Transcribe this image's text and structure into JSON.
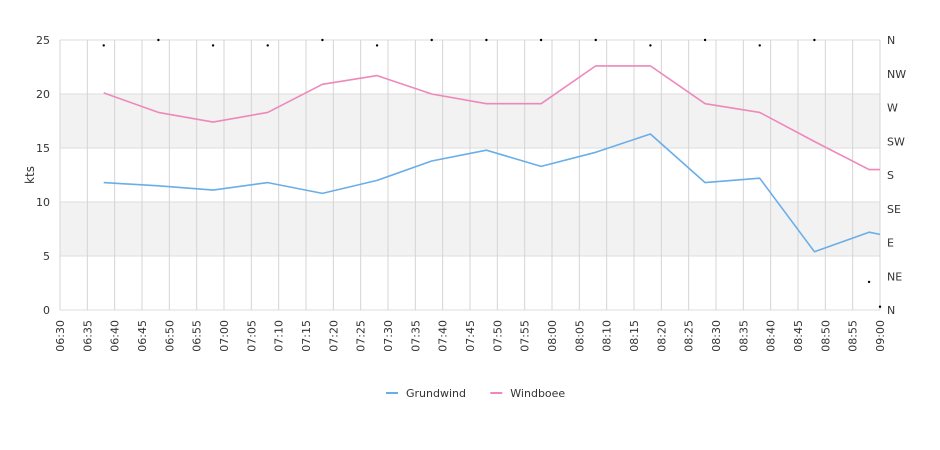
{
  "chart_data": {
    "type": "line",
    "x": [
      "06:30",
      "06:35",
      "06:40",
      "06:45",
      "06:50",
      "06:55",
      "07:00",
      "07:05",
      "07:10",
      "07:15",
      "07:20",
      "07:25",
      "07:30",
      "07:35",
      "07:40",
      "07:45",
      "07:50",
      "07:55",
      "08:00",
      "08:05",
      "08:10",
      "08:15",
      "08:20",
      "08:25",
      "08:30",
      "08:35",
      "08:40",
      "08:45",
      "08:50",
      "08:55",
      "09:00"
    ],
    "ylabel": "kts",
    "ylim": [
      0,
      25
    ],
    "yticks": [
      "0",
      "5",
      "10",
      "15",
      "20",
      "25"
    ],
    "y2ticks": [
      "N",
      "NE",
      "E",
      "SE",
      "S",
      "SW",
      "W",
      "NW",
      "N"
    ],
    "grid": true,
    "shaded_bands": [
      [
        5,
        10
      ],
      [
        15,
        20
      ]
    ],
    "legend_position": "bottom",
    "series": [
      {
        "name": "Grundwind",
        "color": "#6aaee8",
        "points": [
          [
            "06:38",
            11.8
          ],
          [
            "06:48",
            11.5
          ],
          [
            "06:58",
            11.1
          ],
          [
            "07:08",
            11.8
          ],
          [
            "07:18",
            10.8
          ],
          [
            "07:28",
            12.0
          ],
          [
            "07:38",
            13.8
          ],
          [
            "07:48",
            14.8
          ],
          [
            "07:58",
            13.3
          ],
          [
            "08:08",
            14.6
          ],
          [
            "08:18",
            16.3
          ],
          [
            "08:28",
            11.8
          ],
          [
            "08:38",
            12.2
          ],
          [
            "08:48",
            5.4
          ],
          [
            "08:58",
            7.2
          ],
          [
            "09:00",
            7.0
          ]
        ]
      },
      {
        "name": "Windboee",
        "color": "#ee88bb",
        "points": [
          [
            "06:38",
            20.1
          ],
          [
            "06:48",
            18.3
          ],
          [
            "06:58",
            17.4
          ],
          [
            "07:08",
            18.3
          ],
          [
            "07:18",
            20.9
          ],
          [
            "07:28",
            21.7
          ],
          [
            "07:38",
            20.0
          ],
          [
            "07:48",
            19.1
          ],
          [
            "07:58",
            19.1
          ],
          [
            "08:08",
            22.6
          ],
          [
            "08:18",
            22.6
          ],
          [
            "08:28",
            19.1
          ],
          [
            "08:38",
            18.3
          ],
          [
            "08:48",
            15.6
          ],
          [
            "08:58",
            13.0
          ],
          [
            "09:00",
            13.0
          ]
        ]
      }
    ],
    "direction_points": [
      [
        "06:38",
        24.5
      ],
      [
        "06:48",
        25.0
      ],
      [
        "06:58",
        24.5
      ],
      [
        "07:08",
        24.5
      ],
      [
        "07:18",
        25.0
      ],
      [
        "07:28",
        24.5
      ],
      [
        "07:38",
        25.0
      ],
      [
        "07:48",
        25.0
      ],
      [
        "07:58",
        25.0
      ],
      [
        "08:08",
        25.0
      ],
      [
        "08:18",
        24.5
      ],
      [
        "08:28",
        25.0
      ],
      [
        "08:38",
        24.5
      ],
      [
        "08:48",
        25.0
      ],
      [
        "08:58",
        2.6
      ],
      [
        "09:00",
        0.3
      ]
    ]
  }
}
